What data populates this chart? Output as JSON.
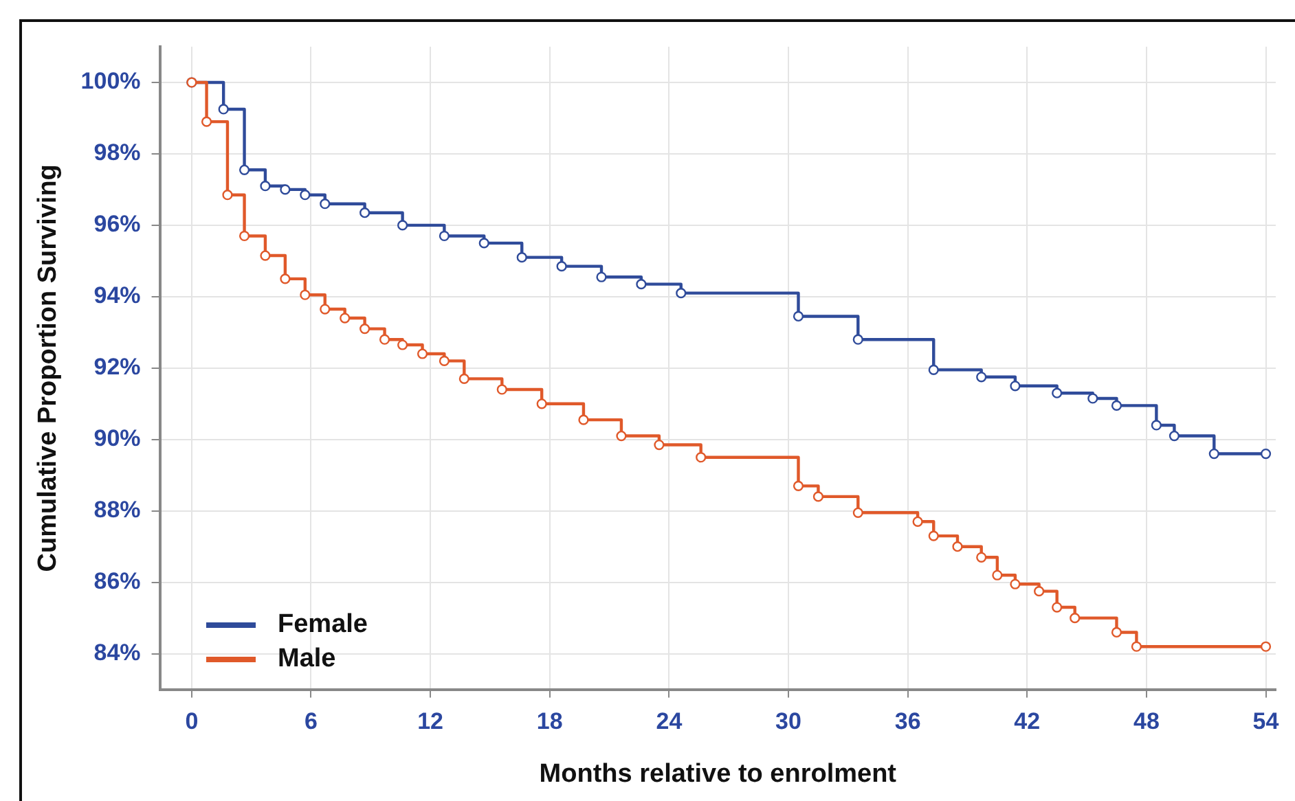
{
  "chart_data": {
    "type": "step",
    "xlabel": "Months relative to enrolment",
    "ylabel": "Cumulative Proportion Surviving",
    "xlim": [
      -1.6,
      54.5
    ],
    "xticks": [
      0,
      6,
      12,
      18,
      24,
      30,
      36,
      42,
      48,
      54
    ],
    "ylim": [
      83,
      101
    ],
    "yticks": [
      {
        "value": 84,
        "label": "84%"
      },
      {
        "value": 86,
        "label": "86%"
      },
      {
        "value": 88,
        "label": "88%"
      },
      {
        "value": 90,
        "label": "90%"
      },
      {
        "value": 92,
        "label": "92%"
      },
      {
        "value": 94,
        "label": "94%"
      },
      {
        "value": 96,
        "label": "96%"
      },
      {
        "value": 98,
        "label": "98%"
      },
      {
        "value": 100,
        "label": "100%"
      }
    ],
    "grid": true,
    "legend": "bottom left",
    "marker": "circle",
    "line_style": "solid",
    "series": [
      {
        "name": "Female",
        "color": "#2f4b9a",
        "x": [
          0,
          1.6,
          2.65,
          3.7,
          4.7,
          5.7,
          6.7,
          8.7,
          10.6,
          12.7,
          14.7,
          16.6,
          18.6,
          20.6,
          22.6,
          24.6,
          30.5,
          33.5,
          37.3,
          39.7,
          41.4,
          43.5,
          45.3,
          46.5,
          48.5,
          49.4,
          51.4,
          54
        ],
        "values": [
          100,
          99.25,
          97.55,
          97.1,
          97.0,
          96.85,
          96.6,
          96.35,
          96.0,
          95.7,
          95.5,
          95.1,
          94.85,
          94.55,
          94.35,
          94.1,
          93.45,
          92.8,
          91.95,
          91.75,
          91.5,
          91.3,
          91.15,
          90.95,
          90.4,
          90.1,
          89.6,
          89.6
        ]
      },
      {
        "name": "Male",
        "color": "#e0592a",
        "x": [
          0,
          0.75,
          1.8,
          2.65,
          3.7,
          4.7,
          5.7,
          6.7,
          7.7,
          8.7,
          9.7,
          10.6,
          11.6,
          12.7,
          13.7,
          15.6,
          17.6,
          19.7,
          21.6,
          23.5,
          25.6,
          30.5,
          31.5,
          33.5,
          36.5,
          37.3,
          38.5,
          39.7,
          40.5,
          41.4,
          42.6,
          43.5,
          44.4,
          46.5,
          47.5,
          54
        ],
        "values": [
          100,
          98.9,
          96.85,
          95.7,
          95.15,
          94.5,
          94.05,
          93.65,
          93.4,
          93.1,
          92.8,
          92.65,
          92.4,
          92.2,
          91.7,
          91.4,
          91.0,
          90.55,
          90.1,
          89.85,
          89.5,
          88.7,
          88.4,
          87.95,
          87.7,
          87.3,
          87.0,
          86.7,
          86.2,
          85.95,
          85.75,
          85.3,
          85.0,
          84.6,
          84.2,
          84.2
        ]
      }
    ]
  }
}
